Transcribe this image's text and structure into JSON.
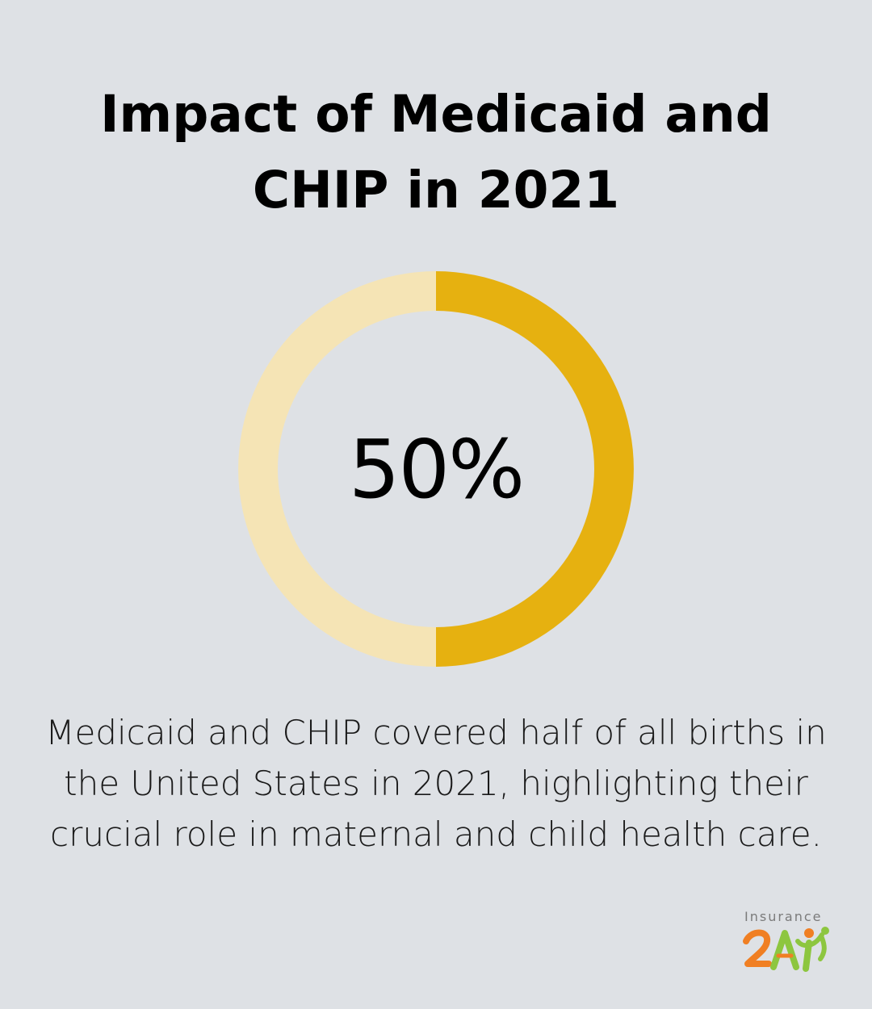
{
  "title": "Impact of Medicaid and CHIP in 2021",
  "stat": {
    "value_label": "50%",
    "description": "Medicaid and CHIP covered half of all births in the United States in 2021, highlighting their crucial role in maternal and child health care."
  },
  "chart_data": {
    "type": "pie",
    "variant": "donut",
    "values": [
      50,
      50
    ],
    "colors": [
      "#e6b110",
      "#f5e4b5"
    ],
    "center_label": "50%"
  },
  "logo": {
    "word": "Insurance",
    "mark": "2Ai",
    "icon": "insurance2ai-logo-icon",
    "colors": [
      "#f07f23",
      "#8dc63f"
    ]
  }
}
